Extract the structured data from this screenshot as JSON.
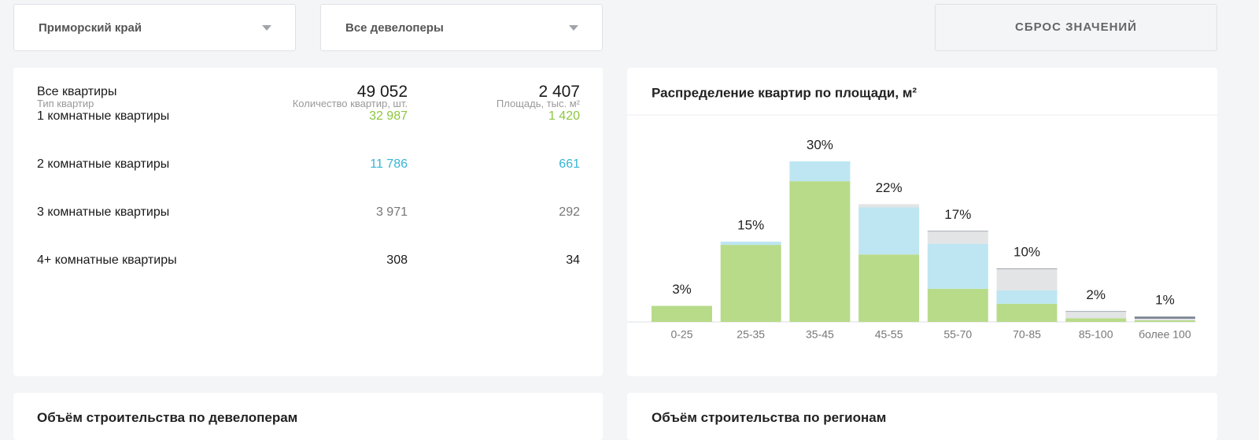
{
  "filters": {
    "region": "Приморский край",
    "developer": "Все девелоперы",
    "reset": "СБРОС ЗНАЧЕНИЙ"
  },
  "table": {
    "headers": [
      "Тип квартир",
      "Количество квартир, шт.",
      "Площадь, тыс. м²"
    ],
    "rows": [
      {
        "label": "Все квартиры",
        "count": "49 052",
        "area": "2 407",
        "color": "#1a1a1a"
      },
      {
        "label": "1 комнатные квартиры",
        "count": "32 987",
        "area": "1 420",
        "color": "#8dc63f"
      },
      {
        "label": "2 комнатные квартиры",
        "count": "11 786",
        "area": "661",
        "color": "#35b5d6"
      },
      {
        "label": "3 комнатные квартиры",
        "count": "3 971",
        "area": "292",
        "color": "#777777"
      },
      {
        "label": "4+ комнатные квартиры",
        "count": "308",
        "area": "34",
        "color": "#1a1a1a"
      }
    ]
  },
  "chart_data": {
    "type": "stacked-bar",
    "title": "Распределение квартир по площади, м²",
    "categories": [
      "0-25",
      "25-35",
      "35-45",
      "45-55",
      "55-70",
      "70-85",
      "85-100",
      "более 100"
    ],
    "series": [
      {
        "color": "#b8db8a",
        "values": [
          3,
          14.4,
          26.3,
          12.6,
          6.2,
          3.4,
          0.7,
          0.3
        ]
      },
      {
        "color": "#bde6f2",
        "values": [
          0,
          0.6,
          3.7,
          8.8,
          8.4,
          2.5,
          0,
          0
        ]
      },
      {
        "color": "#e3e4e6",
        "values": [
          0,
          0,
          0,
          0.6,
          2.3,
          4.0,
          1.2,
          0.3
        ]
      },
      {
        "color": "#7b8590",
        "values": [
          0,
          0,
          0,
          0,
          0.1,
          0.1,
          0.1,
          0.4
        ]
      }
    ],
    "totals": [
      3,
      15,
      30,
      22,
      17,
      10,
      2,
      1
    ],
    "total_labels": [
      "3%",
      "15%",
      "30%",
      "22%",
      "17%",
      "10%",
      "2%",
      "1%"
    ]
  },
  "bottom": {
    "left_title": "Объём строительства по девелоперам",
    "right_title": "Объём строительства по регионам"
  }
}
